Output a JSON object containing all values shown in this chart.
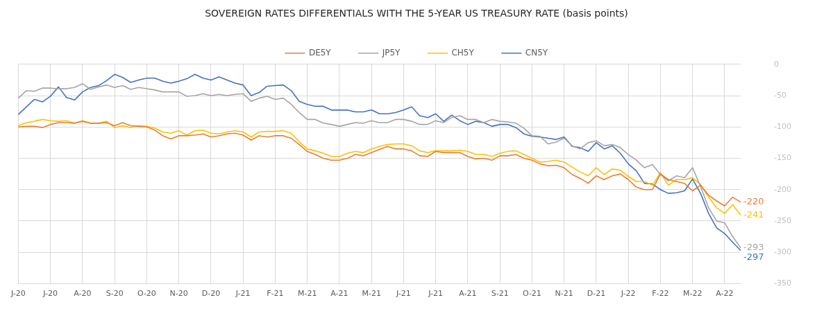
{
  "chart_data": {
    "type": "line",
    "title": "SOVEREIGN RATES DIFFERENTIALS WITH THE 5-YEAR US TREASURY RATE (basis points)",
    "categories": [
      "J-20",
      null,
      null,
      null,
      "J-20",
      null,
      null,
      null,
      "A-20",
      null,
      null,
      null,
      "S-20",
      null,
      null,
      null,
      "O-20",
      null,
      null,
      null,
      "N-20",
      null,
      null,
      null,
      "D-20",
      null,
      null,
      null,
      "J-21",
      null,
      null,
      null,
      "F-21",
      null,
      null,
      null,
      "M-21",
      null,
      null,
      null,
      "A-21",
      null,
      null,
      null,
      "M-21",
      null,
      null,
      null,
      "J-21",
      null,
      null,
      null,
      "J-21",
      null,
      null,
      null,
      "A-21",
      null,
      null,
      null,
      "S-21",
      null,
      null,
      null,
      "O-21",
      null,
      null,
      null,
      "N-21",
      null,
      null,
      null,
      "D-21",
      null,
      null,
      null,
      "J-22",
      null,
      null,
      null,
      "F-22",
      null,
      null,
      null,
      "M-22",
      null,
      null,
      null,
      "A-22",
      null,
      null
    ],
    "series": [
      {
        "name": "DE5Y",
        "color": "#ed7d31",
        "values": [
          -100,
          -99,
          -99,
          -101,
          -96,
          -93,
          -93,
          -94,
          -91,
          -94,
          -94,
          -93,
          -98,
          -93,
          -98,
          -99,
          -100,
          -105,
          -114,
          -119,
          -114,
          -114,
          -113,
          -111,
          -116,
          -114,
          -111,
          -110,
          -113,
          -121,
          -114,
          -116,
          -114,
          -114,
          -118,
          -128,
          -139,
          -144,
          -150,
          -153,
          -153,
          -150,
          -144,
          -146,
          -141,
          -136,
          -131,
          -135,
          -135,
          -138,
          -146,
          -147,
          -139,
          -141,
          -141,
          -141,
          -147,
          -151,
          -150,
          -153,
          -146,
          -146,
          -144,
          -150,
          -153,
          -159,
          -162,
          -161,
          -165,
          -176,
          -182,
          -190,
          -178,
          -184,
          -178,
          -175,
          -184,
          -196,
          -200,
          -200,
          -175,
          -184,
          -187,
          -190,
          -202,
          -193,
          -209,
          -218,
          -226,
          -212,
          -220
        ]
      },
      {
        "name": "JP5Y",
        "color": "#a5a5a5",
        "values": [
          -54,
          -42,
          -43,
          -38,
          -38,
          -39,
          -39,
          -37,
          -31,
          -40,
          -36,
          -33,
          -37,
          -34,
          -40,
          -37,
          -39,
          -41,
          -44,
          -44,
          -44,
          -51,
          -50,
          -47,
          -50,
          -48,
          -50,
          -48,
          -47,
          -59,
          -54,
          -51,
          -56,
          -54,
          -64,
          -77,
          -88,
          -88,
          -94,
          -96,
          -99,
          -96,
          -93,
          -94,
          -90,
          -93,
          -93,
          -88,
          -88,
          -91,
          -96,
          -96,
          -90,
          -93,
          -85,
          -82,
          -88,
          -88,
          -93,
          -88,
          -91,
          -92,
          -94,
          -102,
          -114,
          -115,
          -127,
          -124,
          -118,
          -130,
          -135,
          -125,
          -122,
          -130,
          -128,
          -133,
          -144,
          -153,
          -165,
          -160,
          -176,
          -186,
          -178,
          -181,
          -165,
          -195,
          -229,
          -250,
          -253,
          -275,
          -293
        ]
      },
      {
        "name": "CH5Y",
        "color": "#ffc000",
        "values": [
          -98,
          -93,
          -91,
          -88,
          -90,
          -91,
          -90,
          -94,
          -90,
          -94,
          -94,
          -91,
          -101,
          -98,
          -101,
          -98,
          -99,
          -102,
          -108,
          -110,
          -106,
          -113,
          -106,
          -105,
          -110,
          -111,
          -108,
          -106,
          -108,
          -116,
          -108,
          -107,
          -107,
          -106,
          -110,
          -124,
          -135,
          -138,
          -142,
          -147,
          -147,
          -142,
          -139,
          -141,
          -135,
          -131,
          -128,
          -127,
          -127,
          -130,
          -138,
          -141,
          -138,
          -138,
          -138,
          -137,
          -139,
          -144,
          -144,
          -147,
          -142,
          -139,
          -138,
          -144,
          -150,
          -156,
          -155,
          -153,
          -156,
          -164,
          -172,
          -178,
          -165,
          -176,
          -167,
          -169,
          -179,
          -187,
          -187,
          -193,
          -173,
          -193,
          -184,
          -184,
          -181,
          -192,
          -212,
          -229,
          -238,
          -224,
          -241
        ]
      },
      {
        "name": "CN5Y",
        "color": "#4472c4",
        "values": [
          -80,
          -68,
          -56,
          -60,
          -51,
          -36,
          -53,
          -57,
          -44,
          -37,
          -34,
          -26,
          -16,
          -21,
          -29,
          -25,
          -22,
          -22,
          -27,
          -30,
          -27,
          -23,
          -16,
          -22,
          -25,
          -20,
          -25,
          -30,
          -33,
          -50,
          -45,
          -35,
          -34,
          -33,
          -42,
          -59,
          -64,
          -67,
          -67,
          -73,
          -73,
          -73,
          -76,
          -76,
          -73,
          -79,
          -79,
          -77,
          -73,
          -68,
          -82,
          -85,
          -79,
          -91,
          -81,
          -90,
          -96,
          -91,
          -93,
          -99,
          -96,
          -96,
          -101,
          -111,
          -115,
          -116,
          -118,
          -120,
          -116,
          -131,
          -133,
          -139,
          -125,
          -135,
          -130,
          -142,
          -159,
          -170,
          -190,
          -191,
          -200,
          -206,
          -205,
          -202,
          -183,
          -206,
          -238,
          -261,
          -270,
          -284,
          -297
        ]
      }
    ],
    "ylim": [
      -350,
      0
    ],
    "yticks": [
      -350,
      -300,
      -250,
      -200,
      -150,
      -100,
      -50,
      0
    ],
    "grid": true,
    "legend": "top",
    "marker": "none",
    "line_style": "solid",
    "annotations": [
      "-220",
      "-293",
      "-241",
      "-297"
    ]
  }
}
